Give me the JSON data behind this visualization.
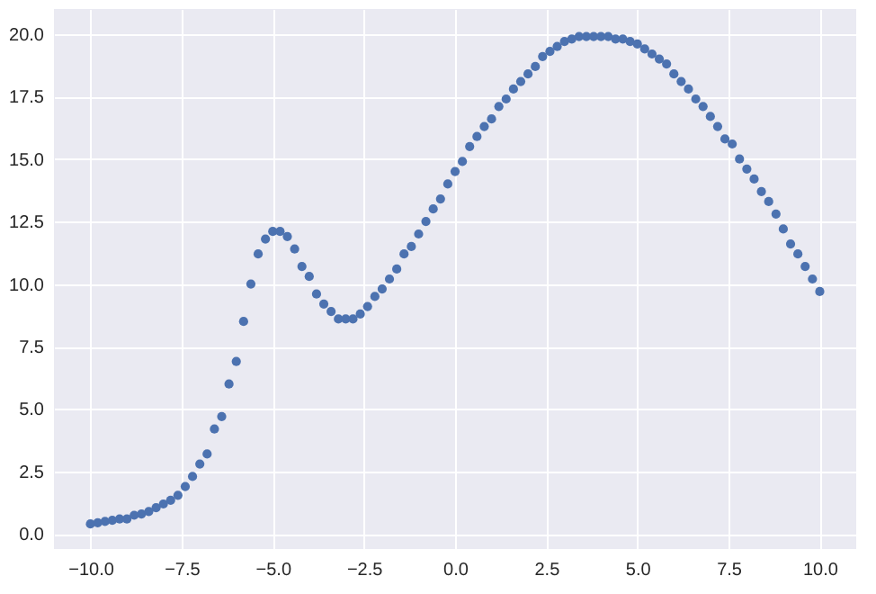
{
  "chart_data": {
    "type": "scatter",
    "marker": "circle",
    "grid": true,
    "x": [
      -10,
      -9.8,
      -9.6,
      -9.4,
      -9.2,
      -9.0,
      -8.8,
      -8.6,
      -8.4,
      -8.2,
      -8.0,
      -7.8,
      -7.6,
      -7.4,
      -7.2,
      -7.0,
      -6.8,
      -6.6,
      -6.4,
      -6.2,
      -6.0,
      -5.8,
      -5.6,
      -5.4,
      -5.2,
      -5.0,
      -4.8,
      -4.6,
      -4.4,
      -4.2,
      -4.0,
      -3.8,
      -3.6,
      -3.4,
      -3.2,
      -3.0,
      -2.8,
      -2.6,
      -2.4,
      -2.2,
      -2.0,
      -1.8,
      -1.6,
      -1.4,
      -1.2,
      -1.0,
      -0.8,
      -0.6,
      -0.4,
      -0.2,
      0,
      0.2,
      0.4,
      0.6,
      0.8,
      1.0,
      1.2,
      1.4,
      1.6,
      1.8,
      2.0,
      2.2,
      2.4,
      2.6,
      2.8,
      3.0,
      3.2,
      3.4,
      3.6,
      3.8,
      4.0,
      4.2,
      4.4,
      4.6,
      4.8,
      5.0,
      5.2,
      5.4,
      5.6,
      5.8,
      6.0,
      6.2,
      6.4,
      6.6,
      6.8,
      7.0,
      7.2,
      7.4,
      7.6,
      7.8,
      8.0,
      8.2,
      8.4,
      8.6,
      8.8,
      9.0,
      9.2,
      9.4,
      9.6,
      9.8,
      10.0
    ],
    "series": [
      {
        "color": "#4c72b0",
        "values": [
          0.4,
          0.45,
          0.5,
          0.55,
          0.6,
          0.6,
          0.75,
          0.8,
          0.9,
          1.05,
          1.2,
          1.35,
          1.55,
          1.9,
          2.3,
          2.8,
          3.2,
          4.2,
          4.7,
          6.0,
          6.9,
          8.5,
          10.0,
          11.2,
          11.8,
          12.1,
          12.1,
          11.9,
          11.4,
          10.7,
          10.3,
          9.6,
          9.2,
          8.9,
          8.6,
          8.6,
          8.6,
          8.8,
          9.1,
          9.5,
          9.8,
          10.2,
          10.6,
          11.2,
          11.5,
          12.0,
          12.5,
          13.0,
          13.4,
          14.0,
          14.5,
          14.9,
          15.5,
          15.9,
          16.3,
          16.6,
          17.1,
          17.4,
          17.8,
          18.1,
          18.4,
          18.7,
          19.1,
          19.3,
          19.5,
          19.7,
          19.8,
          19.9,
          19.9,
          19.9,
          19.9,
          19.9,
          19.8,
          19.8,
          19.7,
          19.6,
          19.4,
          19.2,
          19.0,
          18.8,
          18.4,
          18.1,
          17.8,
          17.4,
          17.1,
          16.7,
          16.3,
          15.8,
          15.6,
          15.0,
          14.6,
          14.2,
          13.7,
          13.3,
          12.8,
          12.2,
          11.6,
          11.2,
          10.7,
          10.2,
          9.7
        ]
      }
    ],
    "xlim": [
      -11,
      11
    ],
    "xticks": [
      {
        "value": -10,
        "label": "−10.0"
      },
      {
        "value": -7.5,
        "label": "−7.5"
      },
      {
        "value": -5,
        "label": "−5.0"
      },
      {
        "value": -2.5,
        "label": "−2.5"
      },
      {
        "value": 0,
        "label": "0.0"
      },
      {
        "value": 2.5,
        "label": "2.5"
      },
      {
        "value": 5,
        "label": "5.0"
      },
      {
        "value": 7.5,
        "label": "7.5"
      },
      {
        "value": 10,
        "label": "10.0"
      }
    ],
    "ylim": [
      -0.6,
      21
    ],
    "yticks": [
      {
        "value": 0,
        "label": "0.0"
      },
      {
        "value": 2.5,
        "label": "2.5"
      },
      {
        "value": 5,
        "label": "5.0"
      },
      {
        "value": 7.5,
        "label": "7.5"
      },
      {
        "value": 10,
        "label": "10.0"
      },
      {
        "value": 12.5,
        "label": "12.5"
      },
      {
        "value": 15,
        "label": "15.0"
      },
      {
        "value": 17.5,
        "label": "17.5"
      },
      {
        "value": 20,
        "label": "20.0"
      }
    ]
  }
}
